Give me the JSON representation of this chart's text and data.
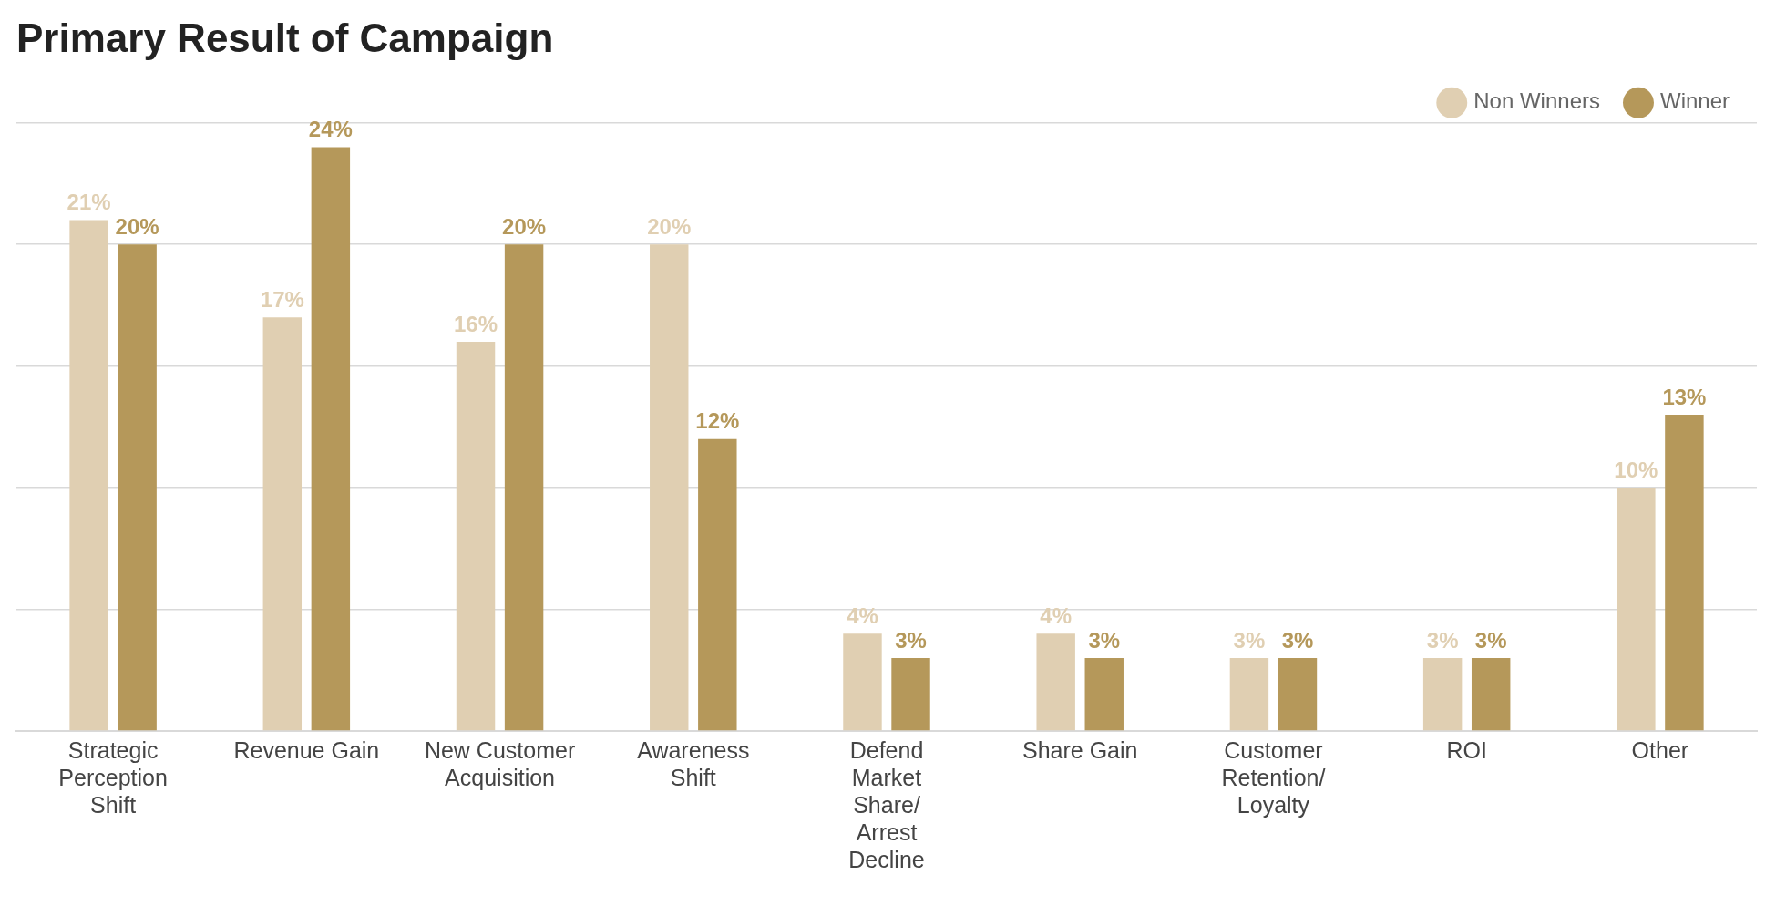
{
  "chart_data": {
    "type": "bar",
    "title": "Primary Result of Campaign",
    "categories": [
      "Strategic Perception Shift",
      "Revenue Gain",
      "New Customer Acquisition",
      "Awareness Shift",
      "Defend Market Share/ Arrest Decline",
      "Share Gain",
      "Customer Retention/ Loyalty",
      "ROI",
      "Other"
    ],
    "series": [
      {
        "name": "Non Winners",
        "color": "#e0cfb2",
        "values": [
          21,
          17,
          16,
          20,
          4,
          4,
          3,
          3,
          10
        ],
        "value_labels": [
          "21%",
          "17%",
          "16%",
          "20%",
          "4%",
          "4%",
          "3%",
          "3%",
          "10%"
        ]
      },
      {
        "name": "Winner",
        "color": "#b5985a",
        "values": [
          20,
          24,
          20,
          12,
          3,
          3,
          3,
          3,
          13
        ],
        "value_labels": [
          "20%",
          "24%",
          "20%",
          "12%",
          "3%",
          "3%",
          "3%",
          "3%",
          "13%"
        ]
      }
    ],
    "tick_labels": "x",
    "grid": "y",
    "legend": "top right"
  }
}
